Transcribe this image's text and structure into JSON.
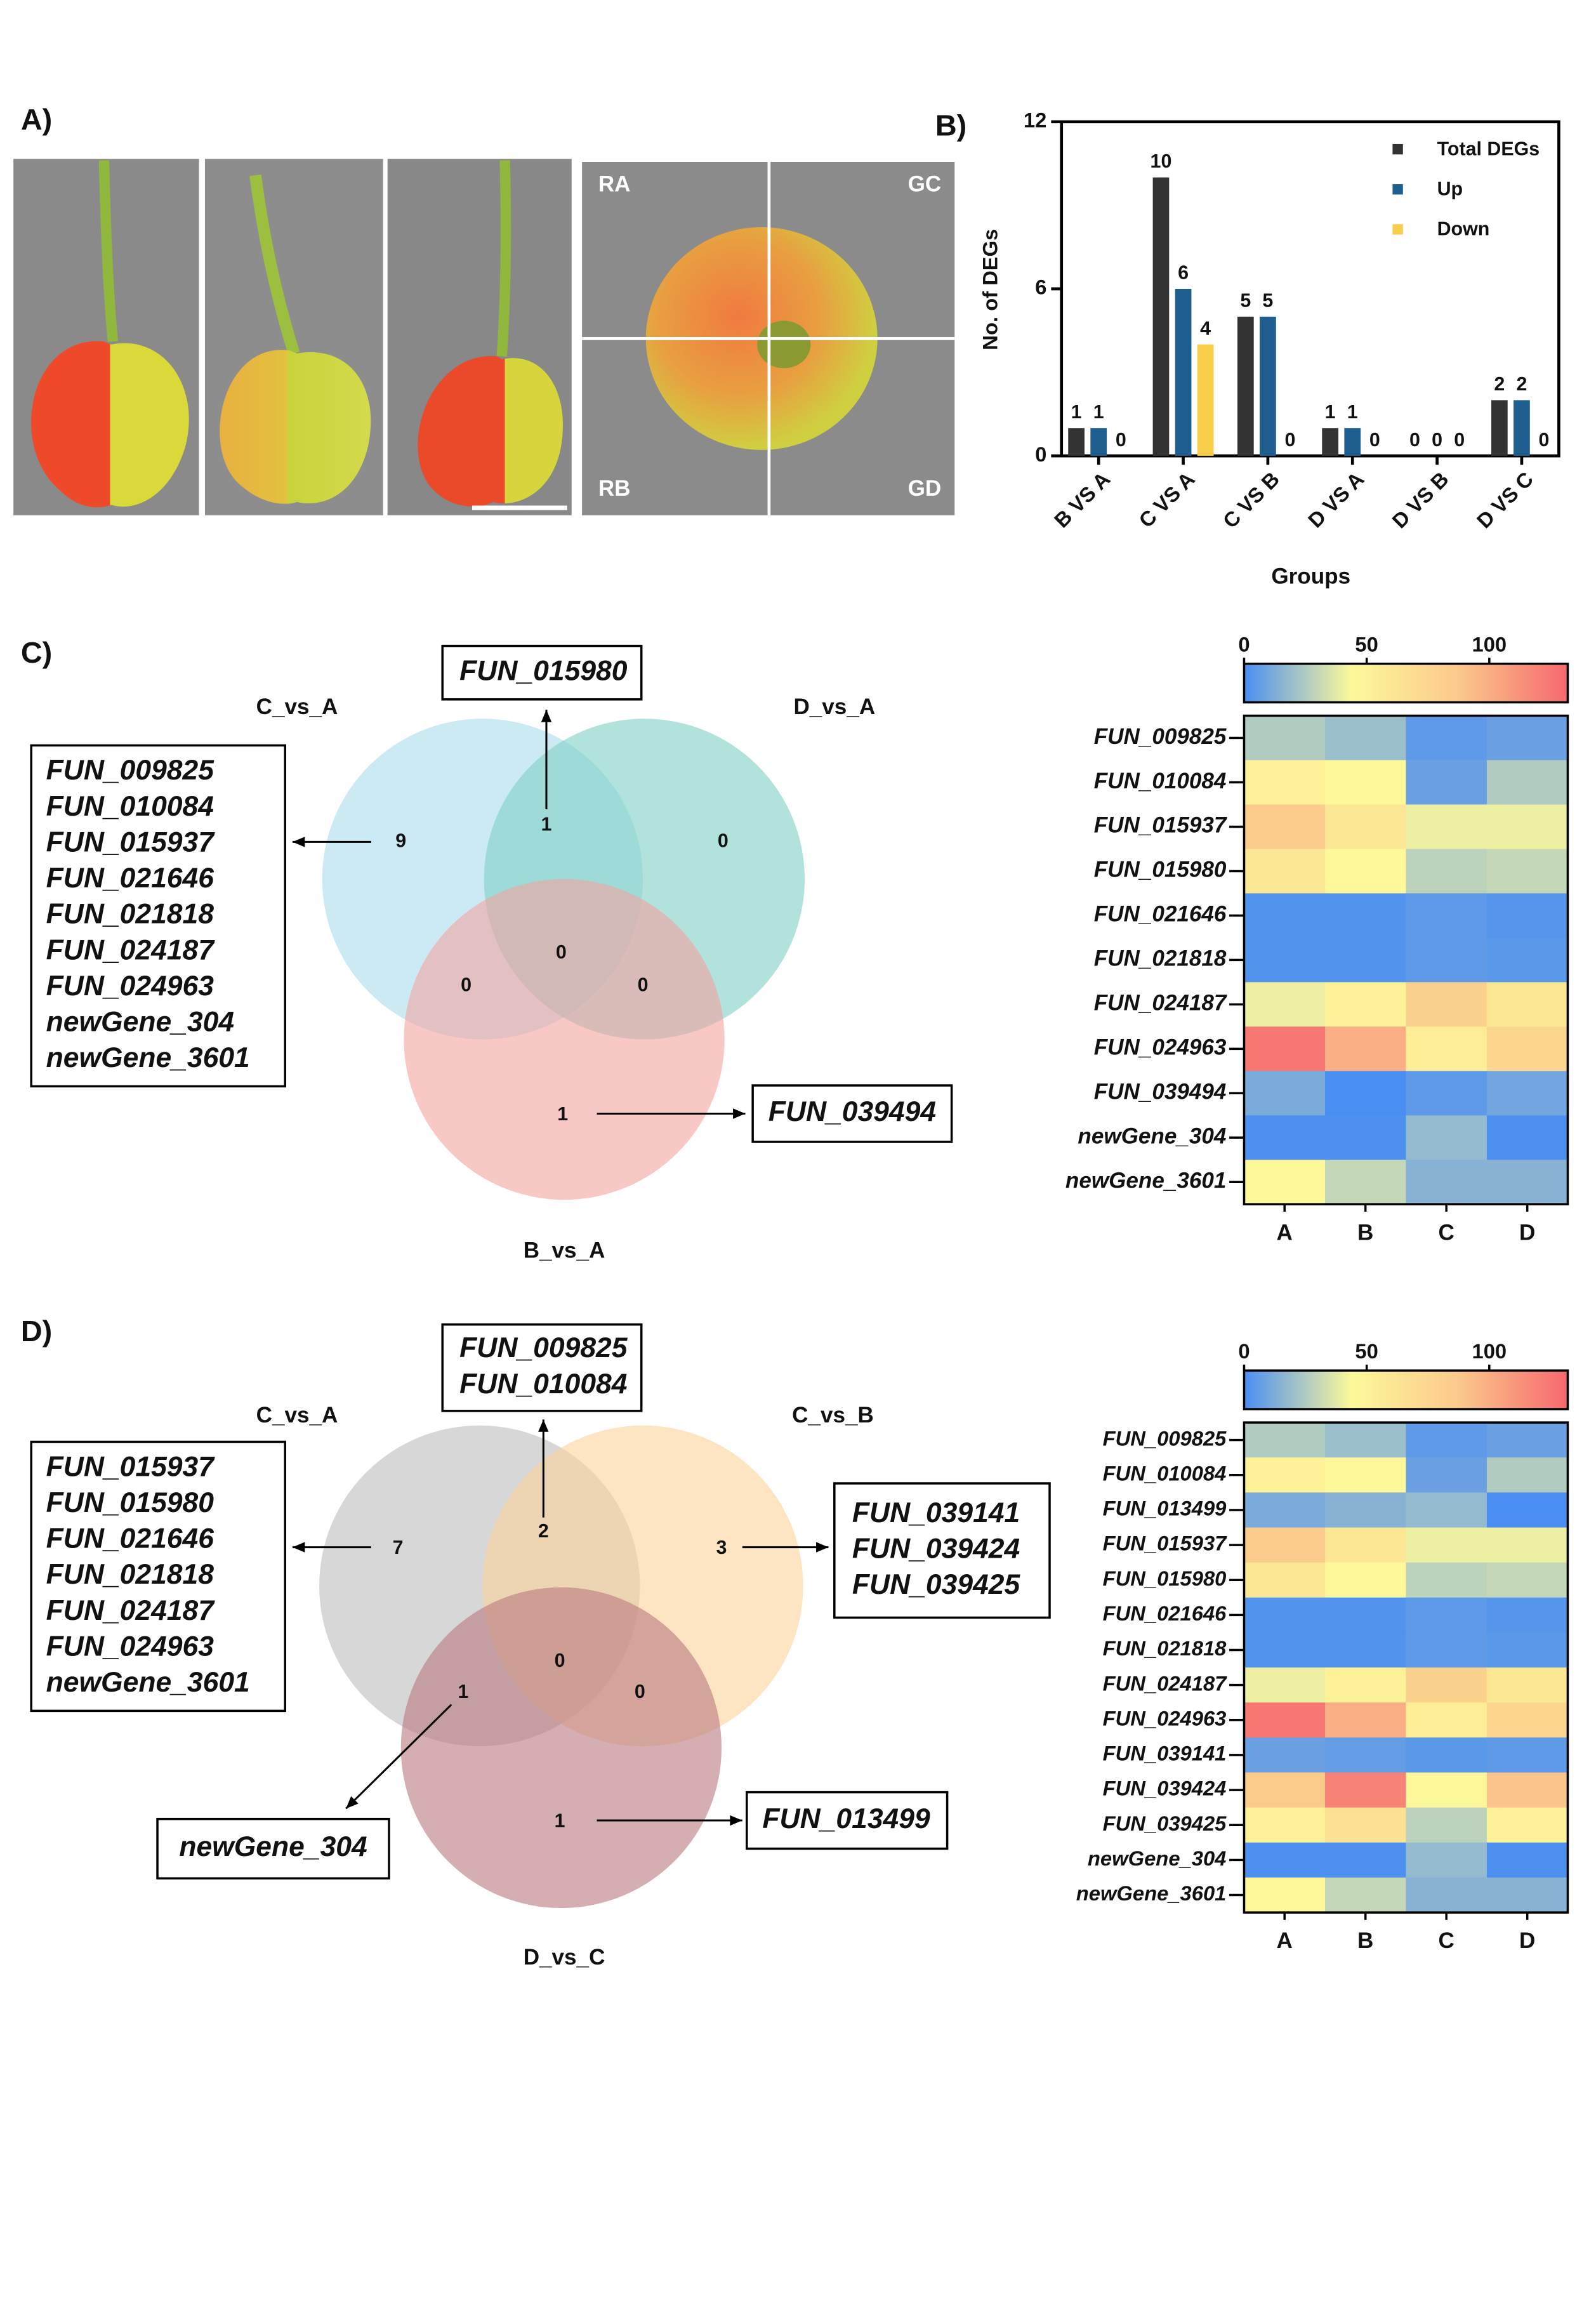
{
  "panels": {
    "a": "A)",
    "b": "B)",
    "c": "C)",
    "d": "D)"
  },
  "photo": {
    "labels": [
      "RA",
      "GC",
      "RB",
      "GD"
    ]
  },
  "chart_data": [
    {
      "type": "bar",
      "ylabel": "No. of DEGs",
      "xlabel": "Groups",
      "categories": [
        "B VS A",
        "C VS A",
        "C VS B",
        "D VS A",
        "D VS B",
        "D VS C"
      ],
      "series": [
        {
          "name": "Total DEGs",
          "color": "#333333",
          "values": [
            1,
            10,
            5,
            1,
            0,
            2
          ]
        },
        {
          "name": "Up",
          "color": "#1f5f8f",
          "values": [
            1,
            6,
            5,
            1,
            0,
            2
          ]
        },
        {
          "name": "Down",
          "color": "#f7cd4a",
          "values": [
            0,
            4,
            0,
            0,
            0,
            0
          ]
        }
      ],
      "ylim": [
        0,
        12
      ],
      "yticks": [
        0,
        6,
        12
      ],
      "legend": "upper right"
    },
    {
      "type": "heatmap",
      "columns": [
        "A",
        "B",
        "C",
        "D"
      ],
      "rows": [
        "FUN_009825",
        "FUN_010084",
        "FUN_015937",
        "FUN_015980",
        "FUN_021646",
        "FUN_021818",
        "FUN_024187",
        "FUN_024963",
        "FUN_039494",
        "newGene_304",
        "newGene_3601"
      ],
      "values": [
        [
          25,
          20,
          5,
          8
        ],
        [
          50,
          45,
          8,
          25
        ],
        [
          85,
          60,
          40,
          40
        ],
        [
          60,
          45,
          28,
          30
        ],
        [
          2,
          2,
          5,
          3
        ],
        [
          2,
          2,
          5,
          4
        ],
        [
          40,
          50,
          80,
          60
        ],
        [
          125,
          100,
          55,
          75
        ],
        [
          12,
          0,
          5,
          10
        ],
        [
          1,
          1,
          18,
          1
        ],
        [
          45,
          30,
          15,
          15
        ]
      ],
      "clim": [
        0,
        132
      ],
      "cticks": [
        0,
        50,
        100
      ],
      "colors": [
        "#4a8ef2",
        "#fdf99a",
        "#fbc88b",
        "#f6686e"
      ]
    },
    {
      "type": "heatmap",
      "columns": [
        "A",
        "B",
        "C",
        "D"
      ],
      "rows": [
        "FUN_009825",
        "FUN_010084",
        "FUN_013499",
        "FUN_015937",
        "FUN_015980",
        "FUN_021646",
        "FUN_021818",
        "FUN_024187",
        "FUN_024963",
        "FUN_039141",
        "FUN_039424",
        "FUN_039425",
        "newGene_304",
        "newGene_3601"
      ],
      "values": [
        [
          25,
          20,
          5,
          8
        ],
        [
          50,
          45,
          8,
          25
        ],
        [
          12,
          15,
          18,
          0
        ],
        [
          85,
          60,
          40,
          40
        ],
        [
          60,
          45,
          28,
          30
        ],
        [
          2,
          2,
          5,
          3
        ],
        [
          2,
          2,
          5,
          4
        ],
        [
          40,
          50,
          80,
          60
        ],
        [
          125,
          100,
          55,
          75
        ],
        [
          8,
          6,
          4,
          5
        ],
        [
          85,
          120,
          45,
          90
        ],
        [
          50,
          65,
          28,
          50
        ],
        [
          1,
          1,
          18,
          1
        ],
        [
          45,
          30,
          15,
          15
        ]
      ],
      "clim": [
        0,
        132
      ],
      "cticks": [
        0,
        50,
        100
      ],
      "colors": [
        "#4a8ef2",
        "#fdf99a",
        "#fbc88b",
        "#f6686e"
      ]
    }
  ],
  "venns": [
    {
      "sets": [
        "C_vs_A",
        "D_vs_A",
        "B_vs_A"
      ],
      "colors": [
        "#a9dced",
        "#7fcfc4",
        "#f3a49f"
      ],
      "counts": [
        9,
        1,
        0,
        0,
        0,
        0,
        1
      ],
      "gene_lists": [
        [
          "FUN_015980"
        ],
        [
          "FUN_009825",
          "FUN_010084",
          "FUN_015937",
          "FUN_021646",
          "FUN_021818",
          "FUN_024187",
          "FUN_024963",
          "newGene_304",
          "newGene_3601"
        ],
        [
          "FUN_039494"
        ]
      ]
    },
    {
      "sets": [
        "C_vs_A",
        "C_vs_B",
        "D_vs_C"
      ],
      "colors": [
        "#bcbcbc",
        "#fcd49c",
        "#b9787f"
      ],
      "counts": [
        7,
        2,
        3,
        1,
        0,
        0,
        1
      ],
      "gene_lists": [
        [
          "FUN_009825",
          "FUN_010084"
        ],
        [
          "FUN_015937",
          "FUN_015980",
          "FUN_021646",
          "FUN_021818",
          "FUN_024187",
          "FUN_024963",
          "newGene_3601"
        ],
        [
          "FUN_039141",
          "FUN_039424",
          "FUN_039425"
        ],
        [
          "newGene_304"
        ],
        [
          "FUN_013499"
        ]
      ]
    }
  ]
}
